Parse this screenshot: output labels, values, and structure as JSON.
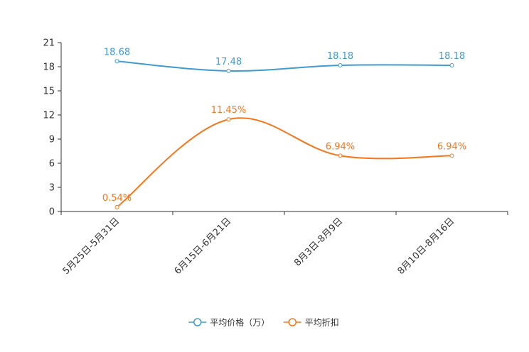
{
  "chart_data": {
    "type": "line",
    "title": "",
    "xlabel": "",
    "ylabel": "",
    "categories": [
      "5月25日-5月31日",
      "6月15日-6月21日",
      "8月3日-8月9日",
      "8月10日-8月16日"
    ],
    "ylim": [
      0,
      21
    ],
    "yticks": [
      0,
      3,
      6,
      9,
      12,
      15,
      18,
      21
    ],
    "ytick_labels": [
      "0",
      "3",
      "6",
      "9",
      "12",
      "15",
      "18",
      "21"
    ],
    "grid": false,
    "legend_position": "bottom-center",
    "series": [
      {
        "name": "平均价格（万）",
        "color": "#3f9bd0",
        "values": [
          18.68,
          17.48,
          18.18,
          18.18
        ],
        "labels": [
          "18.68",
          "17.48",
          "18.18",
          "18.18"
        ]
      },
      {
        "name": "平均折扣",
        "color": "#f5761b",
        "values": [
          0.54,
          11.45,
          6.94,
          6.94
        ],
        "labels": [
          "0.54%",
          "11.45%",
          "6.94%",
          "6.94%"
        ]
      }
    ]
  }
}
